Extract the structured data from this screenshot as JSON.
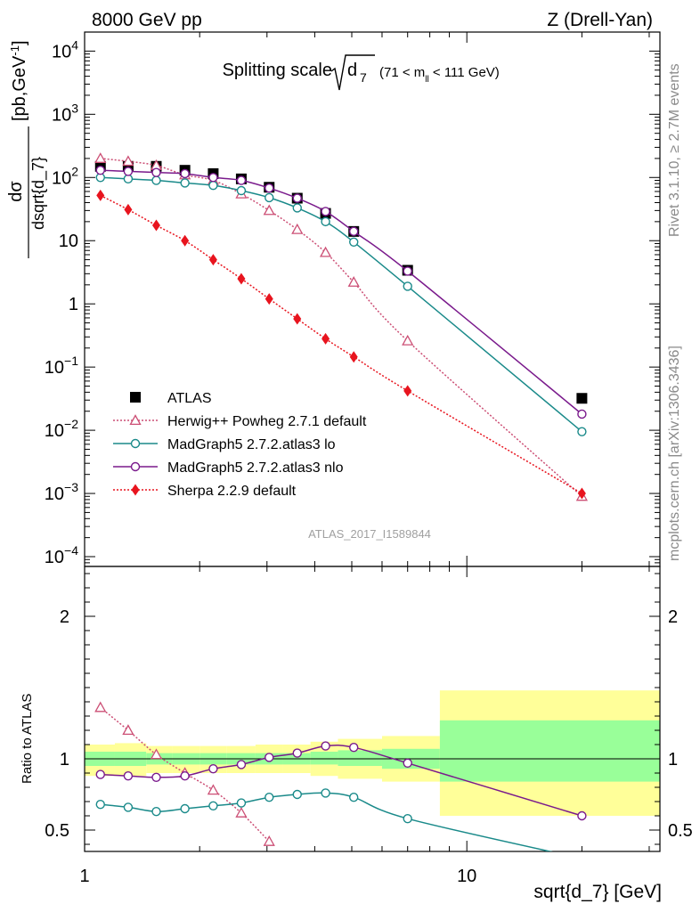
{
  "header": {
    "left": "8000 GeV pp",
    "right": "Z (Drell-Yan)"
  },
  "title": {
    "main": "Splitting scale",
    "sym": "d",
    "sub": "7",
    "range_pre": "(71 < m",
    "range_sub": "ll",
    "range_post": " < 111 GeV)"
  },
  "side_labels": {
    "rivet": "Rivet 3.1.10, ≥ 2.7M events",
    "mcplots": "mcplots.cern.ch [arXiv:1306.3436]"
  },
  "watermark": "ATLAS_2017_I1589844",
  "ylabel_top": {
    "num": "dσ",
    "den": "dsqrt{d_7}",
    "unit": "[pb,GeV",
    "unit_sup": "-1",
    "unit_close": "]"
  },
  "ylabel_bottom": "Ratio to ATLAS",
  "xlabel": "sqrt{d_7} [GeV]",
  "colors": {
    "atlas": "#000000",
    "herwig": "#cc4f75",
    "mg_lo": "#1a8a8a",
    "mg_nlo": "#7a1a8c",
    "sherpa": "#e8141e",
    "band_inner": "#99ff99",
    "band_outer": "#ffff99"
  },
  "legend": [
    {
      "label": "ATLAS",
      "key": "atlas"
    },
    {
      "label": "Herwig++ Powheg 2.7.1 default",
      "key": "herwig"
    },
    {
      "label": "MadGraph5 2.7.2.atlas3 lo",
      "key": "mg_lo"
    },
    {
      "label": "MadGraph5 2.7.2.atlas3 nlo",
      "key": "mg_nlo"
    },
    {
      "label": "Sherpa 2.2.9 default",
      "key": "sherpa"
    }
  ],
  "chart_data": [
    {
      "type": "line",
      "panel": "main",
      "xscale": "log",
      "yscale": "log",
      "xlim": [
        1,
        32
      ],
      "ylim": [
        7e-05,
        20000
      ],
      "ytick_labels": [
        {
          "v": 0.0001,
          "base": "10",
          "exp": "−4"
        },
        {
          "v": 0.001,
          "base": "10",
          "exp": "−3"
        },
        {
          "v": 0.01,
          "base": "10",
          "exp": "−2"
        },
        {
          "v": 0.1,
          "base": "10",
          "exp": "−1"
        },
        {
          "v": 1,
          "base": "1",
          "exp": ""
        },
        {
          "v": 10,
          "base": "10",
          "exp": ""
        },
        {
          "v": 100,
          "base": "10",
          "exp": "2"
        },
        {
          "v": 1000,
          "base": "10",
          "exp": "3"
        },
        {
          "v": 10000,
          "base": "10",
          "exp": "4"
        }
      ],
      "x": [
        1.1,
        1.3,
        1.54,
        1.83,
        2.17,
        2.57,
        3.04,
        3.6,
        4.27,
        5.06,
        7.0,
        20.0
      ],
      "series": [
        {
          "key": "atlas",
          "name": "ATLAS",
          "marker": "square",
          "values": [
            150,
            150,
            150,
            130,
            115,
            95,
            70,
            47,
            27,
            14,
            3.4,
            0.032
          ]
        },
        {
          "key": "herwig",
          "name": "Herwig++ Powheg 2.7.1 default",
          "marker": "triangle",
          "dash": true,
          "values": [
            200,
            180,
            155,
            110,
            90,
            55,
            30,
            15,
            6.5,
            2.2,
            0.26,
            0.0009
          ]
        },
        {
          "key": "mg_lo",
          "name": "MadGraph5 2.7.2.atlas3 lo",
          "marker": "circle",
          "values": [
            100,
            95,
            90,
            82,
            75,
            62,
            48,
            33,
            20,
            9.5,
            1.9,
            0.0095
          ]
        },
        {
          "key": "mg_nlo",
          "name": "MadGraph5 2.7.2.atlas3 nlo",
          "marker": "circle",
          "values": [
            130,
            125,
            120,
            115,
            100,
            90,
            68,
            47,
            29,
            14,
            3.3,
            0.018
          ]
        },
        {
          "key": "sherpa",
          "name": "Sherpa 2.2.9 default",
          "marker": "diamond",
          "dash": true,
          "values": [
            52,
            31,
            17.5,
            10,
            5,
            2.5,
            1.2,
            0.58,
            0.28,
            0.145,
            0.042,
            0.001
          ]
        }
      ]
    },
    {
      "type": "line",
      "panel": "ratio",
      "xscale": "log",
      "yscale": "linear",
      "xlim": [
        1,
        32
      ],
      "ylim": [
        0.35,
        2.35
      ],
      "yticks": [
        0.5,
        1,
        2
      ],
      "xtick_labels": [
        {
          "v": 1,
          "label": "1"
        },
        {
          "v": 10,
          "label": "10"
        }
      ],
      "bands": [
        {
          "x0": 1.0,
          "x1": 1.2,
          "inner": [
            0.95,
            1.05
          ],
          "outer": [
            0.88,
            1.1
          ]
        },
        {
          "x0": 1.2,
          "x1": 1.45,
          "inner": [
            0.95,
            1.05
          ],
          "outer": [
            0.88,
            1.11
          ]
        },
        {
          "x0": 1.45,
          "x1": 1.7,
          "inner": [
            0.96,
            1.04
          ],
          "outer": [
            0.9,
            1.09
          ]
        },
        {
          "x0": 1.7,
          "x1": 2.0,
          "inner": [
            0.96,
            1.04
          ],
          "outer": [
            0.9,
            1.09
          ]
        },
        {
          "x0": 2.0,
          "x1": 2.35,
          "inner": [
            0.96,
            1.04
          ],
          "outer": [
            0.9,
            1.09
          ]
        },
        {
          "x0": 2.35,
          "x1": 2.8,
          "inner": [
            0.96,
            1.04
          ],
          "outer": [
            0.9,
            1.09
          ]
        },
        {
          "x0": 2.8,
          "x1": 3.3,
          "inner": [
            0.96,
            1.04
          ],
          "outer": [
            0.9,
            1.1
          ]
        },
        {
          "x0": 3.3,
          "x1": 3.9,
          "inner": [
            0.96,
            1.04
          ],
          "outer": [
            0.9,
            1.1
          ]
        },
        {
          "x0": 3.9,
          "x1": 4.6,
          "inner": [
            0.96,
            1.05
          ],
          "outer": [
            0.88,
            1.12
          ]
        },
        {
          "x0": 4.6,
          "x1": 6.0,
          "inner": [
            0.95,
            1.06
          ],
          "outer": [
            0.86,
            1.14
          ]
        },
        {
          "x0": 6.0,
          "x1": 8.5,
          "inner": [
            0.93,
            1.07
          ],
          "outer": [
            0.84,
            1.16
          ]
        },
        {
          "x0": 8.5,
          "x1": 32.0,
          "inner": [
            0.84,
            1.27
          ],
          "outer": [
            0.6,
            1.48
          ]
        }
      ],
      "x": [
        1.1,
        1.3,
        1.54,
        1.83,
        2.17,
        2.57,
        3.04,
        3.6,
        4.27,
        5.06,
        7.0,
        20.0
      ],
      "series": [
        {
          "key": "herwig",
          "name": "Herwig++ Powheg 2.7.1 default",
          "marker": "triangle",
          "dash": true,
          "values": [
            1.36,
            1.2,
            1.03,
            0.9,
            0.78,
            0.62,
            0.42,
            null,
            null,
            null,
            null,
            null
          ]
        },
        {
          "key": "mg_lo",
          "name": "MadGraph5 2.7.2.atlas3 lo",
          "marker": "circle",
          "values": [
            0.68,
            0.66,
            0.63,
            0.65,
            0.67,
            0.69,
            0.73,
            0.75,
            0.76,
            0.73,
            0.58,
            0.3
          ]
        },
        {
          "key": "mg_nlo",
          "name": "MadGraph5 2.7.2.atlas3 nlo",
          "marker": "circle",
          "values": [
            0.89,
            0.88,
            0.87,
            0.88,
            0.93,
            0.96,
            1.01,
            1.04,
            1.09,
            1.08,
            0.97,
            0.6
          ]
        }
      ]
    }
  ]
}
